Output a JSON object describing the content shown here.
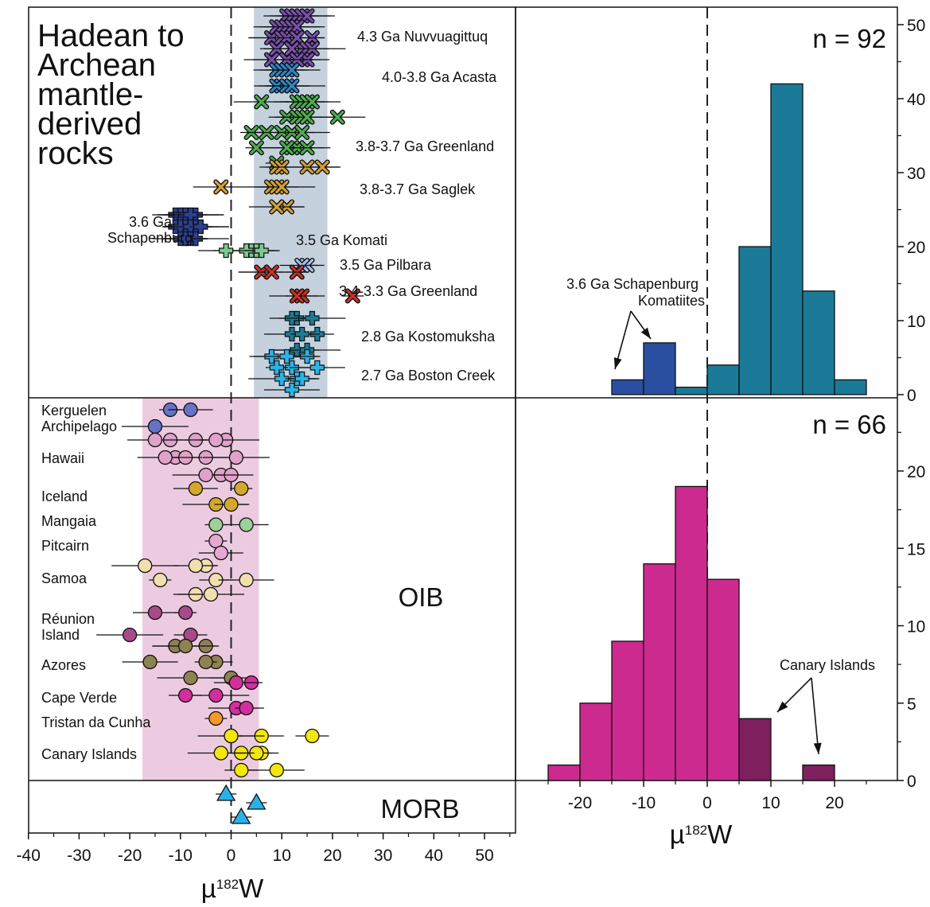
{
  "chart_data": [
    {
      "type": "scatter",
      "panel": "left",
      "xlabel": "µ182W",
      "xlim": [
        -40,
        55
      ],
      "xticks": [
        -40,
        -30,
        -20,
        -10,
        0,
        10,
        20,
        30,
        40,
        50
      ],
      "reference_line_x": 0,
      "title": "Hadean to Archean mantle-derived rocks",
      "section_labels": {
        "oib": "OIB",
        "morb": "MORB"
      },
      "bands": [
        {
          "section": "archean",
          "range": [
            4.5,
            19
          ],
          "color": "#c5d1dd"
        },
        {
          "section": "oib",
          "range": [
            -17.5,
            5.5
          ],
          "color": "#eccbe0"
        }
      ],
      "archean_groups": [
        {
          "label": "4.3 Ga Nuvvuagittuq",
          "marker": "x",
          "color": "#7a4fb0",
          "values": [
            11,
            12,
            13,
            14,
            15,
            9,
            10,
            11,
            12,
            13,
            16,
            8,
            10,
            11,
            13,
            14,
            15,
            16,
            9,
            12,
            14,
            15,
            11,
            13,
            8
          ]
        },
        {
          "label": "4.0-3.8 Ga Acasta",
          "marker": "x",
          "color": "#2e86c8",
          "values": [
            9,
            10,
            11,
            12,
            10,
            9,
            11,
            12
          ]
        },
        {
          "label": "3.8-3.7 Ga Greenland",
          "marker": "x",
          "color": "#4cae4c",
          "values": [
            13,
            14,
            15,
            16,
            6,
            11,
            13,
            14,
            15,
            21,
            4,
            7,
            10,
            12,
            14,
            5,
            12,
            13,
            15,
            11,
            9
          ]
        },
        {
          "label": "3.8-3.7 Ga Saglek",
          "marker": "x",
          "color": "#d4a032",
          "values": [
            9,
            10,
            15,
            18,
            -2,
            8,
            9,
            10,
            11,
            9
          ]
        },
        {
          "label": "3.6 Ga Schapenburg",
          "marker": "plus",
          "color": "#2b3f95",
          "values": [
            -11,
            -10,
            -9,
            -8,
            -7,
            -10,
            -9,
            -8,
            -7,
            -6,
            -11,
            -9,
            -7,
            -10,
            -8,
            -6,
            -9,
            -7,
            -8,
            -10,
            -7,
            -9
          ]
        },
        {
          "label": "3.5 Ga Komati",
          "marker": "plus",
          "color": "#7cc98f",
          "values": [
            5,
            4,
            3,
            6,
            -1
          ]
        },
        {
          "label": "3.5 Ga Pilbara",
          "marker": "x",
          "color": "#a8c0ea",
          "values": [
            15,
            14
          ]
        },
        {
          "label": "3.4-3.3 Ga Greenland",
          "marker": "x",
          "color": "#c8302a",
          "values": [
            13,
            6,
            8,
            14,
            13,
            24
          ]
        },
        {
          "label": "2.8 Ga Kostomuksha",
          "marker": "plus",
          "color": "#1c7c95",
          "values": [
            13,
            12,
            16,
            17,
            12,
            14,
            13,
            15
          ]
        },
        {
          "label": "2.7 Ga Boston Creek",
          "marker": "plus",
          "color": "#29b5e8",
          "values": [
            15,
            8,
            11,
            12,
            17,
            9,
            13,
            10,
            14,
            12
          ]
        }
      ],
      "oib_groups": [
        {
          "label": "Kerguelen Archipelago",
          "marker": "circle",
          "color": "#6572c6",
          "values": [
            -12,
            -8,
            -15
          ]
        },
        {
          "label": "Hawaii",
          "marker": "circle",
          "color": "#e0a2c8",
          "values": [
            -7,
            -12,
            -1,
            -3,
            -15,
            -11,
            -5,
            1,
            -9,
            -13,
            -2,
            0,
            -5
          ]
        },
        {
          "label": "Iceland",
          "marker": "circle",
          "color": "#d4a82a",
          "values": [
            2,
            -7,
            -3,
            0
          ]
        },
        {
          "label": "Mangaia",
          "marker": "circle",
          "color": "#9ed09a",
          "values": [
            -3,
            3
          ]
        },
        {
          "label": "Pitcairn",
          "marker": "circle",
          "color": "#e6a8d2",
          "values": [
            -3,
            -2
          ]
        },
        {
          "label": "Samoa",
          "marker": "circle",
          "color": "#f2dfae",
          "values": [
            -5,
            -7,
            -17,
            -3,
            3,
            -14,
            -7,
            -4
          ]
        },
        {
          "label": "Réunion Island",
          "marker": "circle",
          "color": "#a84a8a",
          "values": [
            -9,
            -15,
            -20,
            -8
          ]
        },
        {
          "label": "Azores",
          "marker": "circle",
          "color": "#8f8252",
          "values": [
            -5,
            -11,
            -9,
            -3,
            -16,
            -5,
            0,
            -8
          ]
        },
        {
          "label": "Cape Verde",
          "marker": "circle",
          "color": "#d32e9e",
          "values": [
            4,
            1,
            -3,
            -9,
            1,
            3
          ]
        },
        {
          "label": "Tristan da Cunha",
          "marker": "circle",
          "color": "#f39a28",
          "values": [
            -3
          ]
        },
        {
          "label": "Canary Islands",
          "marker": "circle",
          "color": "#f2e60e",
          "values": [
            0,
            6,
            0,
            16,
            2,
            6,
            5,
            -2,
            2,
            9
          ]
        }
      ],
      "morb_points": {
        "marker": "triangle",
        "color": "#29b2e8",
        "values": [
          -1,
          5,
          2
        ]
      }
    },
    {
      "type": "bar",
      "panel": "right-top",
      "annotation": "n = 92",
      "xlim": [
        -25,
        25
      ],
      "ylim": [
        0,
        52
      ],
      "yticks": [
        0,
        10,
        20,
        30,
        40,
        50
      ],
      "bins": [
        {
          "x0": -15,
          "x1": -10,
          "count": 2,
          "color": "#2a4fa0"
        },
        {
          "x0": -10,
          "x1": -5,
          "count": 7,
          "color": "#2a4fa0"
        },
        {
          "x0": -5,
          "x1": 0,
          "count": 1,
          "color": "#1b7a97"
        },
        {
          "x0": 0,
          "x1": 5,
          "count": 4,
          "color": "#1b7a97"
        },
        {
          "x0": 5,
          "x1": 10,
          "count": 20,
          "color": "#1b7a97"
        },
        {
          "x0": 10,
          "x1": 15,
          "count": 42,
          "color": "#1b7a97"
        },
        {
          "x0": 15,
          "x1": 20,
          "count": 14,
          "color": "#1b7a97"
        },
        {
          "x0": 20,
          "x1": 25,
          "count": 2,
          "color": "#1b7a97"
        }
      ],
      "callout": "3.6 Ga Schapenburg Komatiites",
      "callout_lines": [
        "3.6 Ga Schapenburg",
        "Komatiites"
      ]
    },
    {
      "type": "bar",
      "panel": "right-bottom",
      "annotation": "n = 66",
      "xlabel": "µ182W",
      "xlim": [
        -27,
        27
      ],
      "xticks": [
        -20,
        -10,
        0,
        10,
        20
      ],
      "ylim": [
        0,
        26
      ],
      "yticks": [
        0,
        5,
        10,
        15,
        20
      ],
      "bins": [
        {
          "x0": -25,
          "x1": -20,
          "count": 1,
          "color": "#cc2a8e"
        },
        {
          "x0": -20,
          "x1": -15,
          "count": 5,
          "color": "#cc2a8e"
        },
        {
          "x0": -15,
          "x1": -10,
          "count": 9,
          "color": "#cc2a8e"
        },
        {
          "x0": -10,
          "x1": -5,
          "count": 14,
          "color": "#cc2a8e"
        },
        {
          "x0": -5,
          "x1": 0,
          "count": 19,
          "color": "#cc2a8e"
        },
        {
          "x0": 0,
          "x1": 5,
          "count": 13,
          "color": "#cc2a8e"
        },
        {
          "x0": 5,
          "x1": 10,
          "count": 4,
          "color": "#7e1f5e"
        },
        {
          "x0": 15,
          "x1": 20,
          "count": 1,
          "color": "#7e1f5e"
        }
      ],
      "callout": "Canary Islands"
    }
  ]
}
